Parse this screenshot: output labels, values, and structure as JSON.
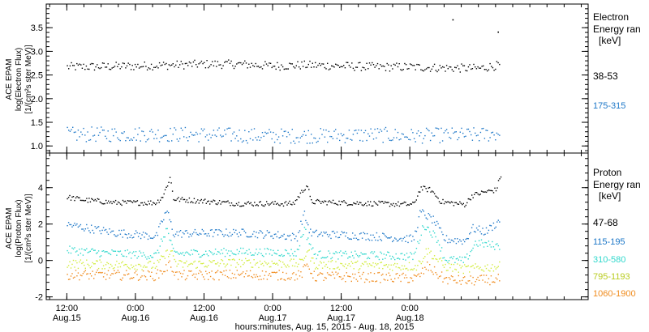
{
  "chart_data": [
    {
      "type": "scatter",
      "panel": "electron",
      "ylabel_lines": [
        "ACE EPAM",
        "log(Electron Flux)",
        "[1/(cm²s ster MeV)]"
      ],
      "ylim": [
        0.85,
        4.0
      ],
      "yticks": [
        1.0,
        1.5,
        2.0,
        2.5,
        3.0,
        3.5
      ],
      "ytick_labels": [
        "1.0",
        "1.5",
        "2.0",
        "2.5",
        "3.0",
        "3.5"
      ],
      "legend_title_lines": [
        "Electron",
        "Energy ran",
        "[keV]"
      ],
      "series": [
        {
          "name": "38-53",
          "color": "#000000",
          "profile": [
            [
              0,
              2.68
            ],
            [
              1,
              2.7
            ],
            [
              1.5,
              2.72
            ],
            [
              2,
              2.74
            ],
            [
              2.5,
              2.74
            ],
            [
              3,
              2.7
            ],
            [
              3.5,
              2.72
            ],
            [
              4,
              2.7
            ],
            [
              4.5,
              2.68
            ],
            [
              5,
              2.68
            ],
            [
              5.5,
              2.66
            ],
            [
              6,
              2.65
            ],
            [
              6.3,
              2.72
            ]
          ]
        },
        {
          "name": "175-315",
          "color": "#1e78c8",
          "profile": [
            [
              0,
              1.25
            ],
            [
              1,
              1.26
            ],
            [
              2,
              1.25
            ],
            [
              3,
              1.22
            ],
            [
              4,
              1.23
            ],
            [
              4.5,
              1.25
            ],
            [
              5,
              1.22
            ],
            [
              5.5,
              1.24
            ],
            [
              6,
              1.24
            ],
            [
              6.3,
              1.28
            ]
          ]
        }
      ],
      "outliers": [
        {
          "x": 5.62,
          "y": 3.68
        },
        {
          "x": 6.28,
          "y": 3.42
        }
      ]
    },
    {
      "type": "scatter",
      "panel": "proton",
      "ylabel_lines": [
        "ACE EPAM",
        "log(Proton Flux)",
        "[1/(cm²s ster MeV)]"
      ],
      "ylim": [
        -2.15,
        5.9
      ],
      "yticks": [
        -2,
        0,
        2,
        4
      ],
      "ytick_labels": [
        "-2",
        "0",
        "2",
        "4"
      ],
      "legend_title_lines": [
        "Proton",
        "Energy ran",
        "[keV]"
      ],
      "series": [
        {
          "name": "47-68",
          "color": "#000000",
          "profile": [
            [
              0,
              3.5
            ],
            [
              0.25,
              3.35
            ],
            [
              0.7,
              3.2
            ],
            [
              1.3,
              3.2
            ],
            [
              1.4,
              3.6
            ],
            [
              1.5,
              4.6
            ],
            [
              1.55,
              3.4
            ],
            [
              2.5,
              3.15
            ],
            [
              3.3,
              3.15
            ],
            [
              3.4,
              3.7
            ],
            [
              3.5,
              4.2
            ],
            [
              3.55,
              3.25
            ],
            [
              4.5,
              3.15
            ],
            [
              5.05,
              3.1
            ],
            [
              5.15,
              4.0
            ],
            [
              5.3,
              3.9
            ],
            [
              5.45,
              3.25
            ],
            [
              5.8,
              3.1
            ],
            [
              5.9,
              3.6
            ],
            [
              6.1,
              3.8
            ],
            [
              6.25,
              3.9
            ],
            [
              6.32,
              4.7
            ]
          ]
        },
        {
          "name": "115-195",
          "color": "#1e78c8",
          "profile": [
            [
              0,
              2.0
            ],
            [
              0.3,
              1.8
            ],
            [
              0.7,
              1.55
            ],
            [
              1.3,
              1.35
            ],
            [
              1.45,
              2.8
            ],
            [
              1.55,
              1.5
            ],
            [
              2.5,
              1.55
            ],
            [
              3.0,
              1.45
            ],
            [
              3.35,
              1.3
            ],
            [
              3.45,
              2.6
            ],
            [
              3.55,
              1.5
            ],
            [
              4.5,
              1.35
            ],
            [
              5.05,
              1.2
            ],
            [
              5.15,
              2.7
            ],
            [
              5.35,
              2.2
            ],
            [
              5.5,
              1.2
            ],
            [
              5.8,
              1.1
            ],
            [
              5.9,
              1.8
            ],
            [
              6.1,
              1.6
            ],
            [
              6.3,
              2.2
            ]
          ]
        },
        {
          "name": "310-580",
          "color": "#30d8cc",
          "profile": [
            [
              0,
              0.6
            ],
            [
              0.5,
              0.45
            ],
            [
              1.3,
              0.3
            ],
            [
              1.45,
              1.8
            ],
            [
              1.55,
              0.4
            ],
            [
              2.5,
              0.5
            ],
            [
              3.35,
              0.45
            ],
            [
              3.45,
              1.8
            ],
            [
              3.6,
              0.35
            ],
            [
              4.5,
              0.3
            ],
            [
              5.05,
              0.25
            ],
            [
              5.2,
              2.0
            ],
            [
              5.4,
              1.2
            ],
            [
              5.5,
              0.1
            ],
            [
              5.8,
              0.0
            ],
            [
              5.95,
              1.0
            ],
            [
              6.3,
              0.8
            ]
          ]
        },
        {
          "name": "795-1193",
          "color": "#d2ec3c",
          "profile": [
            [
              0,
              -0.15
            ],
            [
              1.3,
              -0.25
            ],
            [
              1.5,
              0.6
            ],
            [
              1.6,
              -0.2
            ],
            [
              2.5,
              -0.1
            ],
            [
              3.4,
              -0.15
            ],
            [
              3.5,
              0.6
            ],
            [
              3.6,
              -0.2
            ],
            [
              4.5,
              -0.25
            ],
            [
              5.1,
              -0.3
            ],
            [
              5.25,
              0.6
            ],
            [
              5.5,
              -0.3
            ],
            [
              5.8,
              -0.45
            ],
            [
              6.3,
              -0.3
            ]
          ]
        },
        {
          "name": "1060-1900",
          "color": "#f08c1e",
          "profile": [
            [
              0,
              -0.75
            ],
            [
              1.3,
              -0.8
            ],
            [
              1.5,
              -0.2
            ],
            [
              1.6,
              -0.8
            ],
            [
              2.5,
              -0.75
            ],
            [
              3.4,
              -0.8
            ],
            [
              3.5,
              -0.2
            ],
            [
              3.6,
              -0.85
            ],
            [
              4.5,
              -0.9
            ],
            [
              5.1,
              -0.95
            ],
            [
              5.25,
              -0.3
            ],
            [
              5.5,
              -1.0
            ],
            [
              5.8,
              -1.1
            ],
            [
              6.3,
              -1.0
            ]
          ]
        }
      ]
    }
  ],
  "time_axis": {
    "xlabel": "hours:minutes, Aug. 15, 2015 - Aug. 18, 2015",
    "xlim_halfdays": [
      -0.3,
      7.6
    ],
    "ticks": [
      {
        "x": 0,
        "time": "12:00",
        "day": "Aug.15"
      },
      {
        "x": 1,
        "time": "0:00",
        "day": "Aug.16"
      },
      {
        "x": 2,
        "time": "12:00",
        "day": "Aug.16"
      },
      {
        "x": 3,
        "time": "0:00",
        "day": "Aug.17"
      },
      {
        "x": 4,
        "time": "12:00",
        "day": "Aug.17"
      },
      {
        "x": 5,
        "time": "0:00",
        "day": "Aug.18"
      }
    ]
  },
  "colors": {
    "frame": "#000000",
    "background": "#ffffff"
  }
}
